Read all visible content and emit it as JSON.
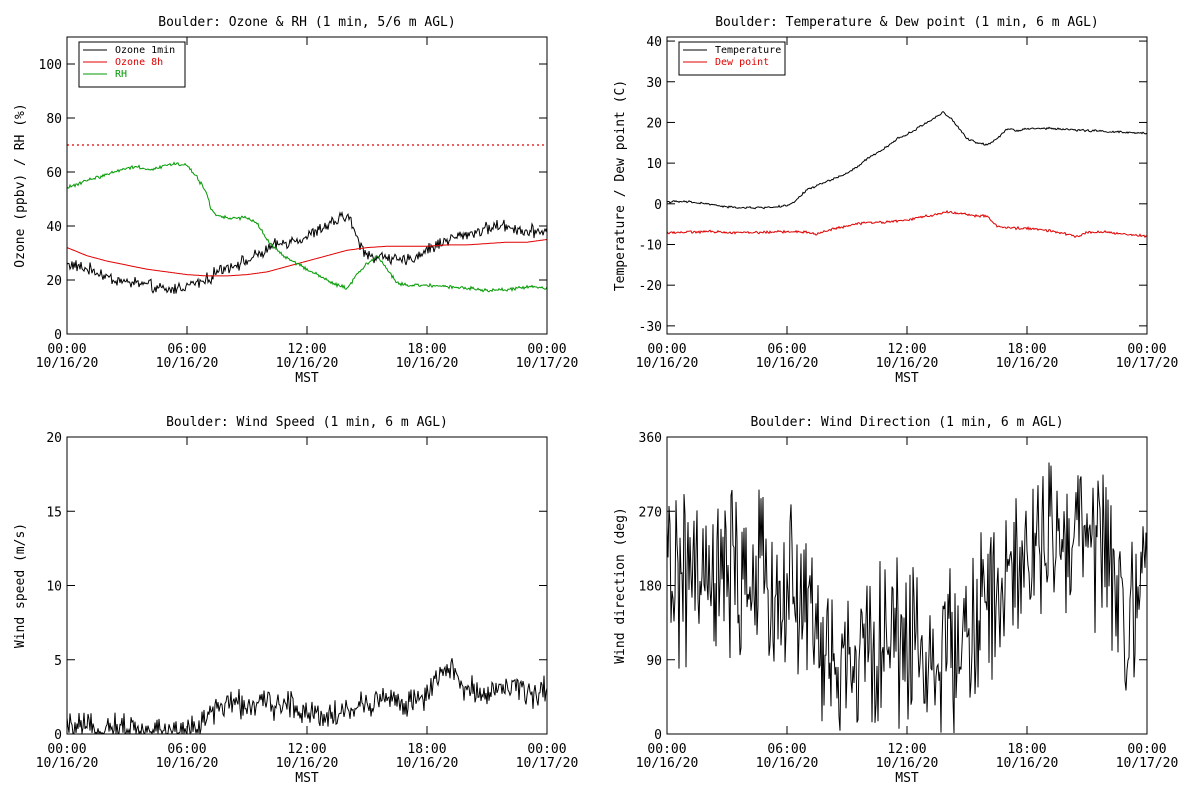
{
  "chart_data": [
    {
      "type": "line",
      "title": "Boulder: Ozone & RH (1 min, 5/6 m AGL)",
      "xlabel": "MST",
      "ylabel": "Ozone (ppbv) / RH (%)",
      "xlim": [
        0,
        24
      ],
      "ylim": [
        0,
        110
      ],
      "x_ticks": [
        {
          "t": 0,
          "time": "00:00",
          "date": "10/16/20"
        },
        {
          "t": 6,
          "time": "06:00",
          "date": "10/16/20"
        },
        {
          "t": 12,
          "time": "12:00",
          "date": "10/16/20"
        },
        {
          "t": 18,
          "time": "18:00",
          "date": "10/16/20"
        },
        {
          "t": 24,
          "time": "00:00",
          "date": "10/17/20"
        }
      ],
      "y_ticks": [
        0,
        20,
        40,
        60,
        80,
        100
      ],
      "legend_position": "top-left",
      "reference_line": {
        "y": 70,
        "color": "#e00000",
        "style": "dotted"
      },
      "series": [
        {
          "name": "Ozone 1min",
          "color": "#000000",
          "noise": 2.2,
          "x": [
            0,
            0.5,
            1,
            1.5,
            2,
            2.5,
            3,
            3.5,
            4,
            4.5,
            5,
            5.5,
            6,
            6.5,
            7,
            7.5,
            8,
            8.5,
            9,
            9.5,
            10,
            10.5,
            11,
            11.5,
            12,
            12.5,
            13,
            13.5,
            14,
            14.3,
            14.6,
            15,
            15.5,
            16,
            16.5,
            17,
            17.5,
            18,
            18.5,
            19,
            19.5,
            20,
            20.5,
            21,
            21.5,
            22,
            22.5,
            23,
            23.5,
            24
          ],
          "y": [
            26,
            25,
            24,
            23,
            21,
            20,
            19,
            19,
            18,
            17,
            16,
            17,
            18,
            19,
            20,
            23,
            25,
            26,
            27,
            29,
            31,
            33,
            34,
            35,
            36,
            38,
            40,
            42,
            44,
            40,
            33,
            30,
            28,
            29,
            27,
            27,
            29,
            31,
            33,
            35,
            36,
            37,
            38,
            39,
            40,
            40,
            39,
            38,
            38,
            39
          ]
        },
        {
          "name": "Ozone 8h",
          "color": "#e00000",
          "noise": 0,
          "x": [
            0,
            1,
            2,
            3,
            4,
            5,
            6,
            7,
            8,
            9,
            10,
            11,
            12,
            13,
            14,
            15,
            16,
            17,
            18,
            19,
            20,
            21,
            22,
            23,
            24
          ],
          "y": [
            32,
            29,
            27,
            25.5,
            24,
            23,
            22,
            21.5,
            21.5,
            22,
            23,
            25,
            27,
            29,
            31,
            32,
            32.5,
            32.5,
            32.5,
            33,
            33,
            33.5,
            34,
            34,
            35
          ]
        },
        {
          "name": "RH",
          "color": "#009900",
          "noise": 0.6,
          "x": [
            0,
            0.5,
            1,
            1.5,
            2,
            2.5,
            3,
            3.5,
            4,
            4.5,
            5,
            5.5,
            6,
            6.5,
            7,
            7.2,
            7.5,
            8,
            9,
            9.5,
            10,
            10.5,
            11,
            11.5,
            12,
            12.5,
            13,
            13.5,
            14,
            14.5,
            15,
            15.5,
            16,
            16.5,
            17,
            18,
            19,
            20,
            21,
            22,
            23,
            24
          ],
          "y": [
            54,
            55.5,
            57,
            58,
            59,
            60.5,
            61.5,
            62,
            61,
            61.5,
            62.5,
            63,
            62.5,
            58,
            52,
            46,
            44,
            43,
            43,
            41,
            35,
            31,
            28,
            26,
            24,
            22,
            20,
            18,
            17,
            22,
            26,
            29,
            24,
            19,
            18,
            18,
            17.5,
            17,
            16,
            16.5,
            17.5,
            17
          ]
        }
      ]
    },
    {
      "type": "line",
      "title": "Boulder: Temperature & Dew point (1 min, 6 m AGL)",
      "xlabel": "MST",
      "ylabel": "Temperature / Dew point (C)",
      "xlim": [
        0,
        24
      ],
      "ylim": [
        -32,
        41
      ],
      "x_ticks": [
        {
          "t": 0,
          "time": "00:00",
          "date": "10/16/20"
        },
        {
          "t": 6,
          "time": "06:00",
          "date": "10/16/20"
        },
        {
          "t": 12,
          "time": "12:00",
          "date": "10/16/20"
        },
        {
          "t": 18,
          "time": "18:00",
          "date": "10/16/20"
        },
        {
          "t": 24,
          "time": "00:00",
          "date": "10/17/20"
        }
      ],
      "y_ticks": [
        -30,
        -20,
        -10,
        0,
        10,
        20,
        30,
        40
      ],
      "legend_position": "top-left",
      "series": [
        {
          "name": "Temperature",
          "color": "#000000",
          "noise": 0.25,
          "x": [
            0,
            1,
            2,
            3,
            4,
            5,
            5.5,
            6,
            6.3,
            6.6,
            7,
            7.5,
            8,
            8.5,
            9,
            9.5,
            10,
            10.5,
            11,
            11.5,
            12,
            12.5,
            13,
            13.5,
            13.8,
            14.2,
            14.6,
            15,
            15.5,
            16,
            16.5,
            17,
            17.5,
            18,
            19,
            20,
            21,
            22,
            23,
            24
          ],
          "y": [
            0.5,
            0.5,
            0,
            -0.8,
            -1,
            -0.9,
            -0.7,
            -0.5,
            0.2,
            1.5,
            3.5,
            4.5,
            5.5,
            6.5,
            7.5,
            9,
            11,
            12.5,
            14,
            16,
            17,
            18.5,
            20,
            21.5,
            22.5,
            21,
            18.5,
            16,
            15,
            14.5,
            16,
            18.5,
            18,
            18.5,
            18.5,
            18.3,
            18,
            17.8,
            17.5,
            17.3
          ]
        },
        {
          "name": "Dew point",
          "color": "#e00000",
          "noise": 0.3,
          "x": [
            0,
            1,
            2,
            3,
            4,
            5,
            6,
            7,
            7.5,
            8,
            9,
            10,
            11,
            12,
            13,
            14,
            15,
            15.5,
            16,
            16.5,
            17,
            18,
            19,
            20,
            20.5,
            21,
            22,
            23,
            24
          ],
          "y": [
            -7,
            -7,
            -6.8,
            -7,
            -7,
            -7,
            -6.8,
            -7,
            -7.5,
            -6.5,
            -5.5,
            -4.5,
            -4.5,
            -4,
            -3,
            -2,
            -2.5,
            -3,
            -3,
            -5.5,
            -6,
            -6,
            -6.5,
            -7.5,
            -8,
            -7,
            -7,
            -7.5,
            -8
          ]
        }
      ]
    },
    {
      "type": "line",
      "title": "Boulder: Wind Speed (1 min, 6 m AGL)",
      "xlabel": "MST",
      "ylabel": "Wind speed (m/s)",
      "xlim": [
        0,
        24
      ],
      "ylim": [
        0,
        20
      ],
      "x_ticks": [
        {
          "t": 0,
          "time": "00:00",
          "date": "10/16/20"
        },
        {
          "t": 6,
          "time": "06:00",
          "date": "10/16/20"
        },
        {
          "t": 12,
          "time": "12:00",
          "date": "10/16/20"
        },
        {
          "t": 18,
          "time": "18:00",
          "date": "10/16/20"
        },
        {
          "t": 24,
          "time": "00:00",
          "date": "10/17/20"
        }
      ],
      "y_ticks": [
        0,
        5,
        10,
        15,
        20
      ],
      "series": [
        {
          "color": "#000000",
          "noise": 0.9,
          "floor": 0,
          "x": [
            0,
            1,
            2,
            3,
            4,
            5,
            6,
            6.5,
            7,
            7.5,
            8,
            9,
            10,
            11,
            12,
            13,
            14,
            15,
            16,
            17,
            18,
            18.5,
            19,
            19.5,
            20,
            21,
            22,
            23,
            24
          ],
          "y": [
            0.4,
            0.3,
            0.4,
            0.3,
            0.3,
            0.2,
            0.3,
            0.5,
            1.0,
            1.8,
            2.0,
            2.0,
            2.0,
            2.0,
            1.5,
            1.3,
            1.5,
            2.0,
            2.5,
            2.0,
            2.5,
            3.5,
            4.5,
            3.8,
            3.0,
            2.8,
            3.2,
            2.8,
            2.8
          ]
        }
      ]
    },
    {
      "type": "line",
      "title": "Boulder: Wind Direction (1 min, 6 m AGL)",
      "xlabel": "MST",
      "ylabel": "Wind direction (deg)",
      "xlim": [
        0,
        24
      ],
      "ylim": [
        0,
        360
      ],
      "x_ticks": [
        {
          "t": 0,
          "time": "00:00",
          "date": "10/16/20"
        },
        {
          "t": 6,
          "time": "06:00",
          "date": "10/16/20"
        },
        {
          "t": 12,
          "time": "12:00",
          "date": "10/16/20"
        },
        {
          "t": 18,
          "time": "18:00",
          "date": "10/16/20"
        },
        {
          "t": 24,
          "time": "00:00",
          "date": "10/17/20"
        }
      ],
      "y_ticks": [
        0,
        90,
        180,
        270,
        360
      ],
      "series": [
        {
          "color": "#000000",
          "noise": 95,
          "floor": 0,
          "ceil": 360,
          "x": [
            0,
            2,
            4,
            6,
            7,
            8,
            9,
            10,
            11,
            12,
            13,
            14,
            15,
            16,
            17,
            18,
            19,
            20,
            21,
            22,
            22.5,
            23,
            23.5,
            24
          ],
          "y": [
            200,
            180,
            190,
            170,
            160,
            90,
            80,
            100,
            110,
            120,
            100,
            90,
            120,
            150,
            170,
            220,
            230,
            240,
            240,
            220,
            180,
            60,
            180,
            240
          ]
        }
      ]
    }
  ]
}
